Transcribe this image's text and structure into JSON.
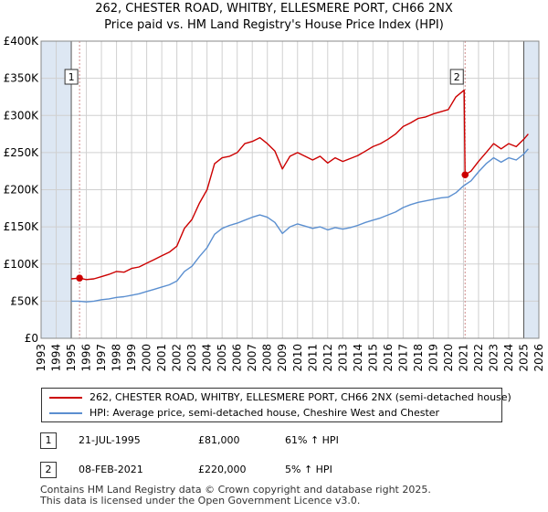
{
  "title": {
    "line1": "262, CHESTER ROAD, WHITBY, ELLESMERE PORT, CH66 2NX",
    "line2": "Price paid vs. HM Land Registry's House Price Index (HPI)"
  },
  "colors": {
    "property": "#cc0000",
    "hpi": "#5b8fd0",
    "shade": "#dde7f3",
    "grid": "#d0d0d0",
    "event": "#d08a8a"
  },
  "chart_data": {
    "type": "line",
    "title": "262, CHESTER ROAD, WHITBY, ELLESMERE PORT, CH66 2NX",
    "subtitle": "Price paid vs. HM Land Registry's House Price Index (HPI)",
    "xlim": [
      1993,
      2026
    ],
    "ylim": [
      0,
      400000
    ],
    "x_ticks": [
      "1993",
      "1994",
      "1995",
      "1996",
      "1997",
      "1998",
      "1999",
      "2000",
      "2001",
      "2002",
      "2003",
      "2004",
      "2005",
      "2006",
      "2007",
      "2008",
      "2009",
      "2010",
      "2011",
      "2012",
      "2013",
      "2014",
      "2015",
      "2016",
      "2017",
      "2018",
      "2019",
      "2020",
      "2021",
      "2022",
      "2023",
      "2024",
      "2025",
      "2026"
    ],
    "y_ticks": [
      {
        "value": 0,
        "label": "£0"
      },
      {
        "value": 50000,
        "label": "£50K"
      },
      {
        "value": 100000,
        "label": "£100K"
      },
      {
        "value": 150000,
        "label": "£150K"
      },
      {
        "value": 200000,
        "label": "£200K"
      },
      {
        "value": 250000,
        "label": "£250K"
      },
      {
        "value": 300000,
        "label": "£300K"
      },
      {
        "value": 350000,
        "label": "£350K"
      },
      {
        "value": 400000,
        "label": "£400K"
      }
    ],
    "grid": true,
    "legend_position": "below",
    "shaded_ranges": [
      [
        1993,
        1995
      ],
      [
        2025,
        2026
      ]
    ],
    "series": [
      {
        "name": "262, CHESTER ROAD, WHITBY, ELLESMERE PORT, CH66 2NX (semi-detached house)",
        "color": "#cc0000",
        "points": [
          [
            1995.0,
            80000
          ],
          [
            1995.55,
            81000
          ],
          [
            1996.0,
            79000
          ],
          [
            1996.5,
            80000
          ],
          [
            1997.0,
            83000
          ],
          [
            1997.5,
            86000
          ],
          [
            1998.0,
            90000
          ],
          [
            1998.5,
            89000
          ],
          [
            1999.0,
            94000
          ],
          [
            1999.5,
            96000
          ],
          [
            2000.0,
            101000
          ],
          [
            2000.5,
            106000
          ],
          [
            2001.0,
            111000
          ],
          [
            2001.5,
            116000
          ],
          [
            2002.0,
            124000
          ],
          [
            2002.5,
            148000
          ],
          [
            2003.0,
            160000
          ],
          [
            2003.5,
            182000
          ],
          [
            2004.0,
            200000
          ],
          [
            2004.5,
            235000
          ],
          [
            2005.0,
            243000
          ],
          [
            2005.5,
            245000
          ],
          [
            2006.0,
            250000
          ],
          [
            2006.5,
            262000
          ],
          [
            2007.0,
            265000
          ],
          [
            2007.5,
            270000
          ],
          [
            2008.0,
            262000
          ],
          [
            2008.5,
            252000
          ],
          [
            2009.0,
            228000
          ],
          [
            2009.5,
            245000
          ],
          [
            2010.0,
            250000
          ],
          [
            2010.5,
            245000
          ],
          [
            2011.0,
            240000
          ],
          [
            2011.5,
            245000
          ],
          [
            2012.0,
            236000
          ],
          [
            2012.5,
            243000
          ],
          [
            2013.0,
            238000
          ],
          [
            2013.5,
            242000
          ],
          [
            2014.0,
            246000
          ],
          [
            2014.5,
            252000
          ],
          [
            2015.0,
            258000
          ],
          [
            2015.5,
            262000
          ],
          [
            2016.0,
            268000
          ],
          [
            2016.5,
            275000
          ],
          [
            2017.0,
            285000
          ],
          [
            2017.5,
            290000
          ],
          [
            2018.0,
            296000
          ],
          [
            2018.5,
            298000
          ],
          [
            2019.0,
            302000
          ],
          [
            2019.5,
            305000
          ],
          [
            2020.0,
            308000
          ],
          [
            2020.5,
            325000
          ],
          [
            2021.05,
            334000
          ],
          [
            2021.11,
            220000
          ],
          [
            2021.5,
            225000
          ],
          [
            2022.0,
            238000
          ],
          [
            2022.5,
            250000
          ],
          [
            2023.0,
            262000
          ],
          [
            2023.5,
            255000
          ],
          [
            2024.0,
            262000
          ],
          [
            2024.5,
            258000
          ],
          [
            2025.0,
            268000
          ],
          [
            2025.3,
            275000
          ]
        ]
      },
      {
        "name": "HPI: Average price, semi-detached house, Cheshire West and Chester",
        "color": "#5b8fd0",
        "points": [
          [
            1995.0,
            50000
          ],
          [
            1995.5,
            50000
          ],
          [
            1996.0,
            49000
          ],
          [
            1996.5,
            50000
          ],
          [
            1997.0,
            52000
          ],
          [
            1997.5,
            53000
          ],
          [
            1998.0,
            55000
          ],
          [
            1998.5,
            56000
          ],
          [
            1999.0,
            58000
          ],
          [
            1999.5,
            60000
          ],
          [
            2000.0,
            63000
          ],
          [
            2000.5,
            66000
          ],
          [
            2001.0,
            69000
          ],
          [
            2001.5,
            72000
          ],
          [
            2002.0,
            77000
          ],
          [
            2002.5,
            90000
          ],
          [
            2003.0,
            97000
          ],
          [
            2003.5,
            110000
          ],
          [
            2004.0,
            122000
          ],
          [
            2004.5,
            140000
          ],
          [
            2005.0,
            148000
          ],
          [
            2005.5,
            152000
          ],
          [
            2006.0,
            155000
          ],
          [
            2006.5,
            159000
          ],
          [
            2007.0,
            163000
          ],
          [
            2007.5,
            166000
          ],
          [
            2008.0,
            163000
          ],
          [
            2008.5,
            156000
          ],
          [
            2009.0,
            141000
          ],
          [
            2009.5,
            150000
          ],
          [
            2010.0,
            154000
          ],
          [
            2010.5,
            151000
          ],
          [
            2011.0,
            148000
          ],
          [
            2011.5,
            150000
          ],
          [
            2012.0,
            146000
          ],
          [
            2012.5,
            149000
          ],
          [
            2013.0,
            147000
          ],
          [
            2013.5,
            149000
          ],
          [
            2014.0,
            152000
          ],
          [
            2014.5,
            156000
          ],
          [
            2015.0,
            159000
          ],
          [
            2015.5,
            162000
          ],
          [
            2016.0,
            166000
          ],
          [
            2016.5,
            170000
          ],
          [
            2017.0,
            176000
          ],
          [
            2017.5,
            180000
          ],
          [
            2018.0,
            183000
          ],
          [
            2018.5,
            185000
          ],
          [
            2019.0,
            187000
          ],
          [
            2019.5,
            189000
          ],
          [
            2020.0,
            190000
          ],
          [
            2020.5,
            196000
          ],
          [
            2021.0,
            205000
          ],
          [
            2021.5,
            212000
          ],
          [
            2022.0,
            224000
          ],
          [
            2022.5,
            235000
          ],
          [
            2023.0,
            243000
          ],
          [
            2023.5,
            237000
          ],
          [
            2024.0,
            243000
          ],
          [
            2024.5,
            240000
          ],
          [
            2025.0,
            248000
          ],
          [
            2025.3,
            255000
          ]
        ]
      }
    ],
    "events": [
      {
        "label": "1",
        "x": 1995.55,
        "price": 81000
      },
      {
        "label": "2",
        "x": 2021.11,
        "price": 220000
      }
    ]
  },
  "legend": {
    "property_label": "262, CHESTER ROAD, WHITBY, ELLESMERE PORT, CH66 2NX (semi-detached house)",
    "hpi_label": "HPI: Average price, semi-detached house, Cheshire West and Chester"
  },
  "transactions": [
    {
      "num": "1",
      "date": "21-JUL-1995",
      "price": "£81,000",
      "hpi": "61% ↑ HPI"
    },
    {
      "num": "2",
      "date": "08-FEB-2021",
      "price": "£220,000",
      "hpi": "5% ↑ HPI"
    }
  ],
  "footer": {
    "line1": "Contains HM Land Registry data © Crown copyright and database right 2025.",
    "line2": "This data is licensed under the Open Government Licence v3.0."
  }
}
